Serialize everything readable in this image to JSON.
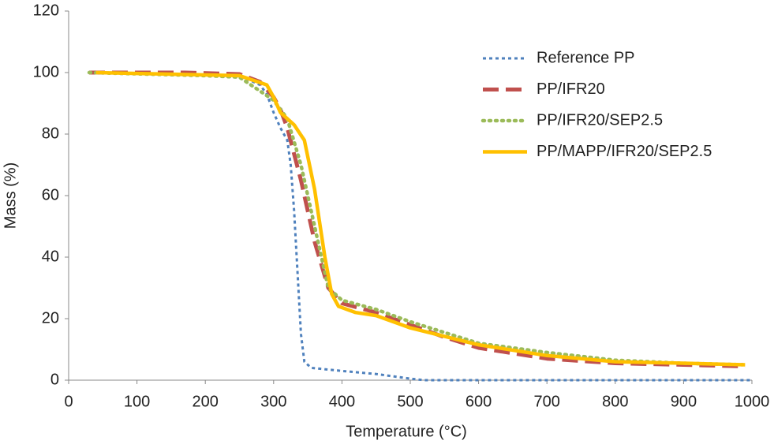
{
  "chart_data": {
    "type": "line",
    "x_label": "Temperature (°C)",
    "y_label": "Mass (%)",
    "xlim": [
      0,
      1000
    ],
    "xticks": [
      0,
      100,
      200,
      300,
      400,
      500,
      600,
      700,
      800,
      900,
      1000
    ],
    "ylim": [
      0,
      120
    ],
    "yticks": [
      0,
      20,
      40,
      60,
      80,
      100,
      120
    ],
    "grid": false,
    "legend": "top-right",
    "series": [
      {
        "name": "Reference PP",
        "color": "#4f81bd",
        "x": [
          30,
          250,
          280,
          290,
          300,
          310,
          320,
          325,
          330,
          335,
          340,
          345,
          355,
          400,
          450,
          500,
          520,
          1000
        ],
        "values": [
          100,
          99,
          96,
          93,
          87,
          82,
          78,
          70,
          55,
          35,
          15,
          6,
          4,
          3,
          2,
          0.5,
          0,
          0
        ]
      },
      {
        "name": "PP/IFR20",
        "color": "#c0504d",
        "x": [
          30,
          170,
          250,
          280,
          300,
          310,
          320,
          340,
          360,
          380,
          400,
          450,
          500,
          550,
          600,
          700,
          800,
          900,
          990
        ],
        "values": [
          100,
          100,
          99.5,
          97,
          92,
          88,
          82,
          65,
          45,
          30,
          25,
          22,
          18,
          14,
          10.5,
          7,
          5.5,
          5,
          4.5
        ]
      },
      {
        "name": "PP/IFR20/SEP2.5",
        "color": "#9bbb59",
        "x": [
          30,
          200,
          250,
          300,
          320,
          340,
          360,
          380,
          400,
          450,
          500,
          600,
          700,
          800,
          900,
          990
        ],
        "values": [
          100,
          99,
          98.5,
          91,
          85,
          70,
          50,
          30,
          26,
          23,
          19,
          12,
          9,
          6.5,
          5.5,
          5
        ]
      },
      {
        "name": "PP/MAPP/IFR20/SEP2.5",
        "color": "#ffc000",
        "x": [
          40,
          250,
          290,
          300,
          310,
          330,
          345,
          360,
          375,
          385,
          395,
          420,
          450,
          500,
          600,
          700,
          800,
          900,
          990
        ],
        "values": [
          100,
          99,
          96,
          92,
          87,
          83,
          78,
          62,
          40,
          28,
          24,
          22,
          21,
          17,
          11.5,
          8,
          6,
          5.5,
          5
        ]
      }
    ]
  }
}
